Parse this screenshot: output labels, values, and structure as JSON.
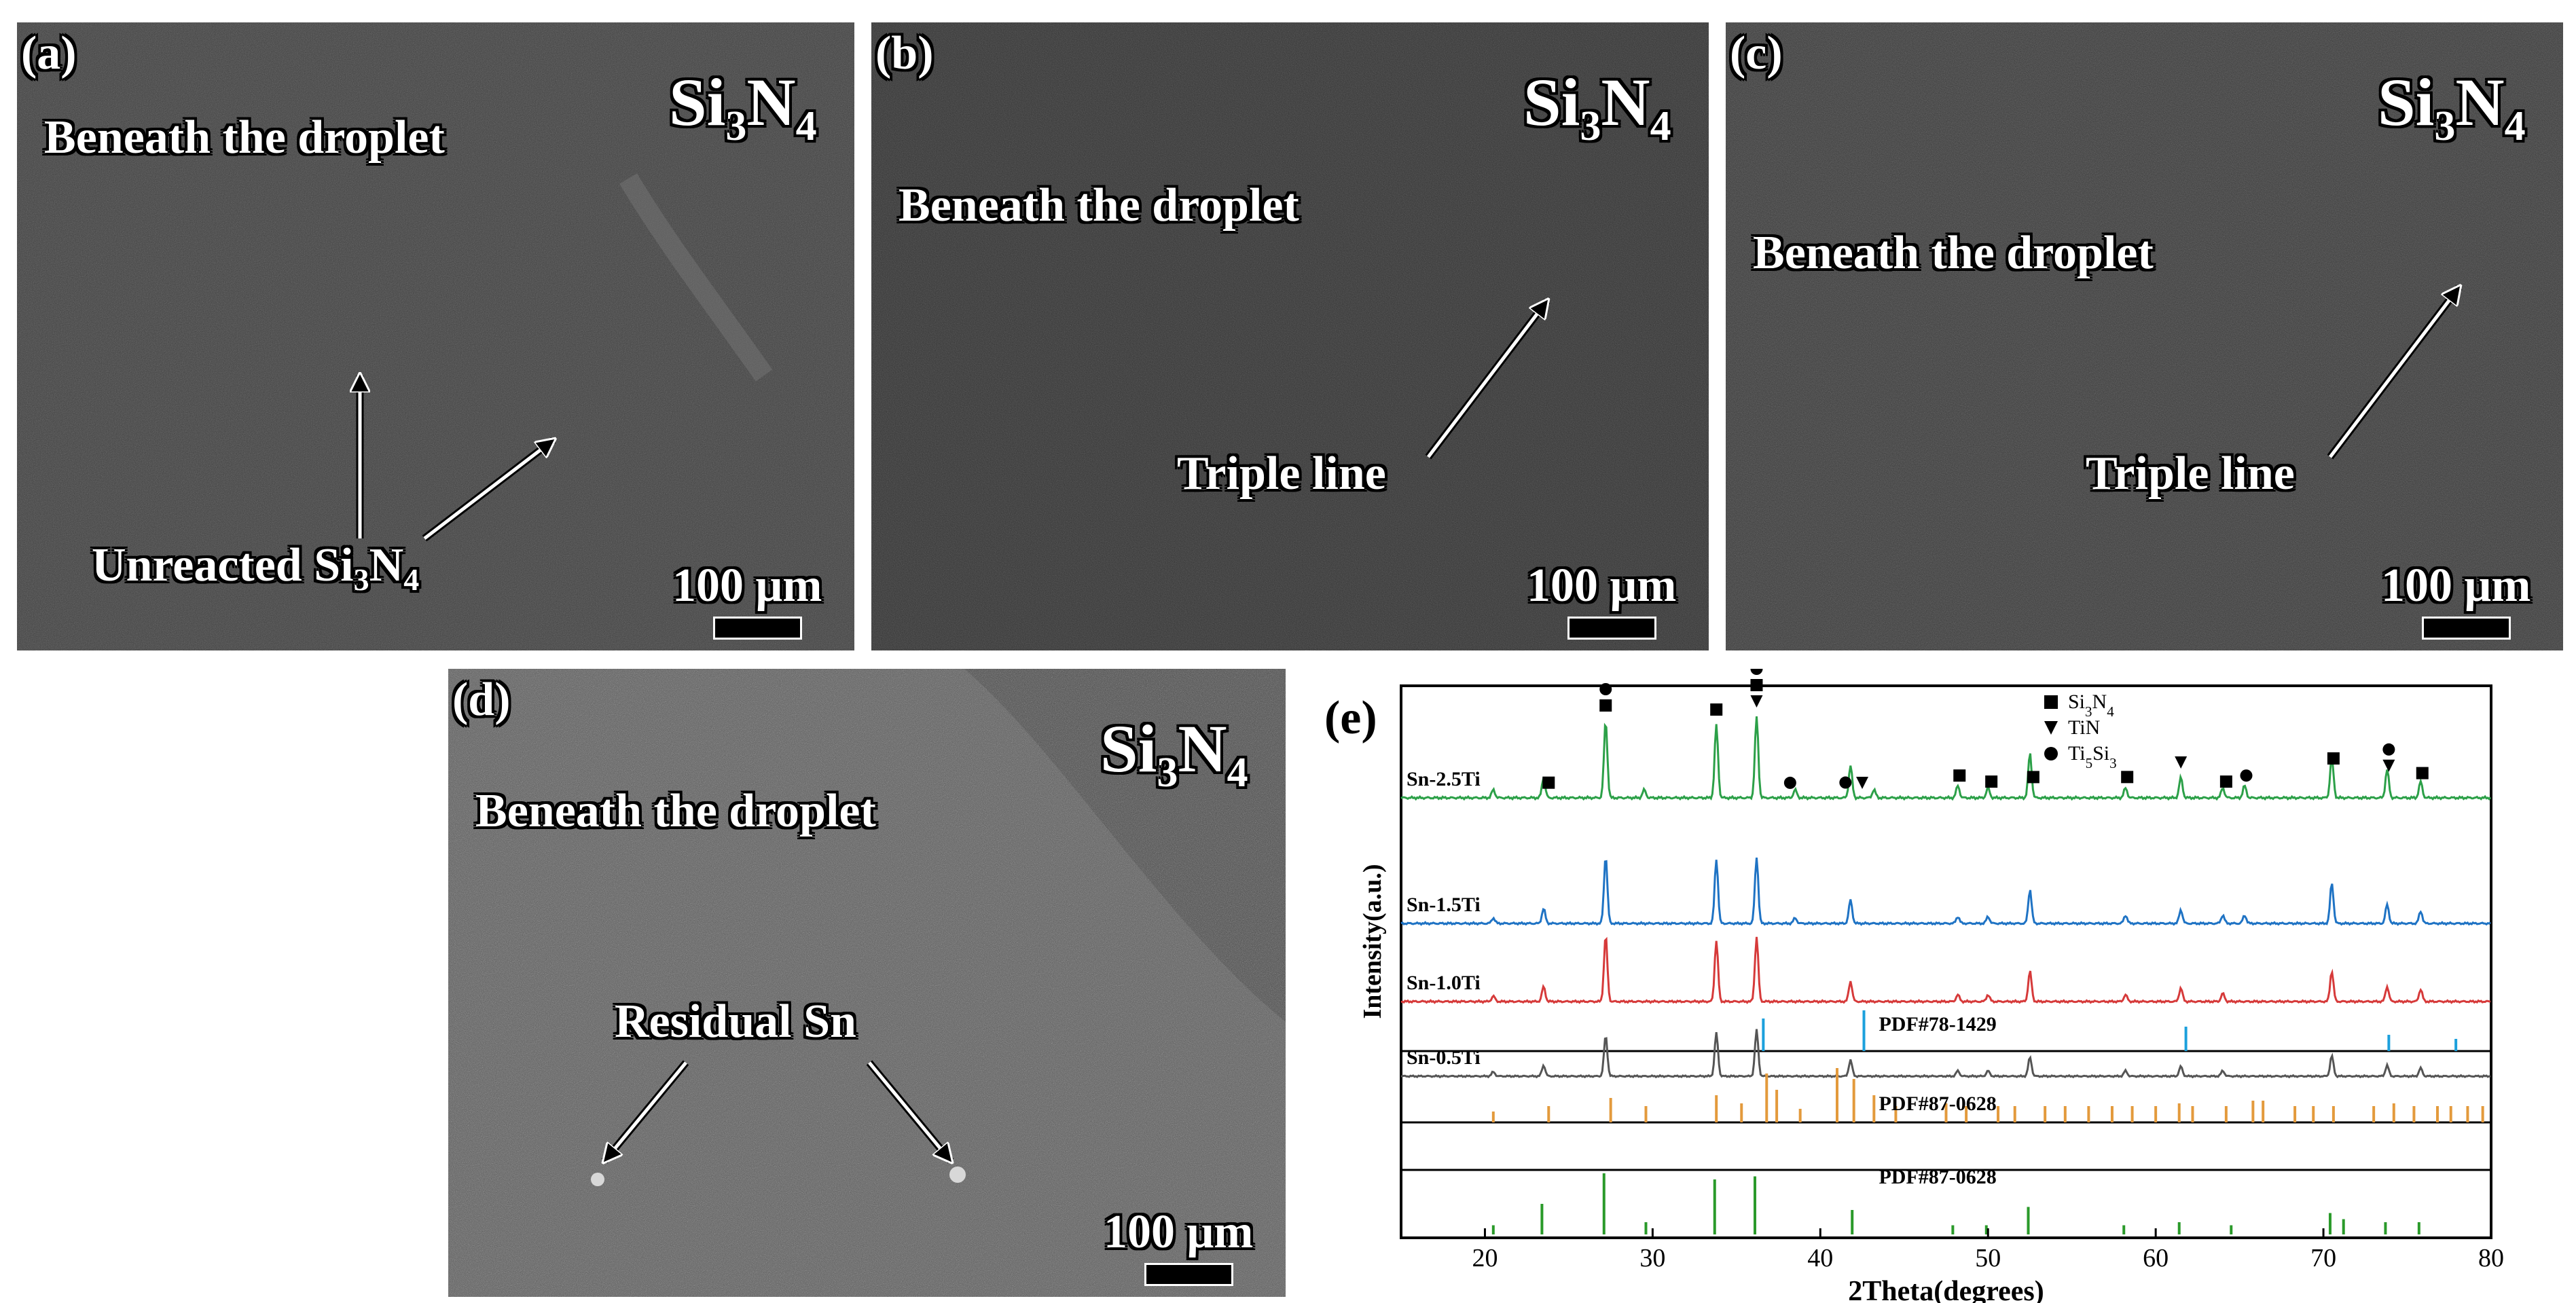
{
  "panels": {
    "a": {
      "label": "(a)",
      "material_main": "Si",
      "material_sub1": "3",
      "material_n": "N",
      "material_sub2": "4",
      "region": "Beneath the droplet",
      "annotation_main": "Unreacted Si",
      "annotation_sub1": "3",
      "annotation_n": "N",
      "annotation_sub2": "4",
      "scale": "100 μm"
    },
    "b": {
      "label": "(b)",
      "material_main": "Si",
      "material_sub1": "3",
      "material_n": "N",
      "material_sub2": "4",
      "region": "Beneath the droplet",
      "annotation": "Triple line",
      "scale": "100 μm"
    },
    "c": {
      "label": "(c)",
      "material_main": "Si",
      "material_sub1": "3",
      "material_n": "N",
      "material_sub2": "4",
      "region": "Beneath the droplet",
      "annotation": "Triple line",
      "scale": "100 μm"
    },
    "d": {
      "label": "(d)",
      "material_main": "Si",
      "material_sub1": "3",
      "material_n": "N",
      "material_sub2": "4",
      "region": "Beneath the droplet",
      "annotation": "Residual Sn",
      "scale": "100 μm"
    }
  },
  "colors": {
    "green": "#2ca048",
    "blue": "#1f73c4",
    "red": "#d63a3a",
    "gray": "#555555",
    "cyan": "#1ca0dc",
    "orange": "#e39a3c",
    "darkgreen": "#2a9a2a"
  },
  "chart_data": {
    "type": "line",
    "label": "(e)",
    "xlabel": "2Theta(degrees)",
    "ylabel": "Intensity(a.u.)",
    "xlim": [
      15,
      80
    ],
    "xticks": [
      20,
      30,
      40,
      50,
      60,
      70,
      80
    ],
    "legend": [
      {
        "marker": "square",
        "main": "Si",
        "sub1": "3",
        "mid": "N",
        "sub2": "4"
      },
      {
        "marker": "triangle-down",
        "main": "TiN",
        "sub1": "",
        "mid": "",
        "sub2": ""
      },
      {
        "marker": "circle",
        "main": "Ti",
        "sub1": "5",
        "mid": "Si",
        "sub2": "3"
      }
    ],
    "series": [
      {
        "name": "Sn-2.5Ti",
        "color": "green",
        "peaks": [
          [
            20.5,
            0.1
          ],
          [
            23.5,
            0.25
          ],
          [
            27.2,
            0.95
          ],
          [
            29.5,
            0.1
          ],
          [
            33.8,
            0.9
          ],
          [
            36.2,
            1.0
          ],
          [
            38.5,
            0.1
          ],
          [
            41.8,
            0.4
          ],
          [
            43.2,
            0.1
          ],
          [
            48.2,
            0.15
          ],
          [
            50.0,
            0.12
          ],
          [
            52.5,
            0.55
          ],
          [
            58.2,
            0.12
          ],
          [
            61.5,
            0.25
          ],
          [
            64.0,
            0.12
          ],
          [
            65.3,
            0.15
          ],
          [
            70.5,
            0.5
          ],
          [
            73.8,
            0.35
          ],
          [
            75.8,
            0.2
          ]
        ]
      },
      {
        "name": "Sn-1.5Ti",
        "color": "blue",
        "peaks": [
          [
            20.5,
            0.08
          ],
          [
            23.5,
            0.22
          ],
          [
            27.2,
            1.0
          ],
          [
            33.8,
            0.95
          ],
          [
            36.2,
            0.98
          ],
          [
            38.5,
            0.08
          ],
          [
            41.8,
            0.35
          ],
          [
            48.2,
            0.1
          ],
          [
            50.0,
            0.1
          ],
          [
            52.5,
            0.5
          ],
          [
            58.2,
            0.12
          ],
          [
            61.5,
            0.2
          ],
          [
            64.0,
            0.12
          ],
          [
            65.3,
            0.12
          ],
          [
            70.5,
            0.6
          ],
          [
            73.8,
            0.28
          ],
          [
            75.8,
            0.18
          ]
        ]
      },
      {
        "name": "Sn-1.0Ti",
        "color": "red",
        "peaks": [
          [
            20.5,
            0.08
          ],
          [
            23.5,
            0.22
          ],
          [
            27.2,
            0.98
          ],
          [
            33.8,
            0.9
          ],
          [
            36.2,
            0.95
          ],
          [
            41.8,
            0.3
          ],
          [
            48.2,
            0.1
          ],
          [
            50.0,
            0.1
          ],
          [
            52.5,
            0.45
          ],
          [
            58.2,
            0.1
          ],
          [
            61.5,
            0.2
          ],
          [
            64.0,
            0.12
          ],
          [
            70.5,
            0.45
          ],
          [
            73.8,
            0.22
          ],
          [
            75.8,
            0.18
          ]
        ]
      },
      {
        "name": "Sn-0.5Ti",
        "color": "gray",
        "peaks": [
          [
            20.5,
            0.08
          ],
          [
            23.5,
            0.2
          ],
          [
            27.2,
            0.75
          ],
          [
            33.8,
            0.8
          ],
          [
            36.2,
            0.85
          ],
          [
            41.8,
            0.3
          ],
          [
            48.2,
            0.1
          ],
          [
            50.0,
            0.1
          ],
          [
            52.5,
            0.35
          ],
          [
            58.2,
            0.1
          ],
          [
            61.5,
            0.18
          ],
          [
            64.0,
            0.1
          ],
          [
            70.5,
            0.38
          ],
          [
            73.8,
            0.2
          ],
          [
            75.8,
            0.15
          ]
        ]
      }
    ],
    "markers_on_top": [
      {
        "x": 27.2,
        "symbols": [
          "circle",
          "square"
        ]
      },
      {
        "x": 33.8,
        "symbols": [
          "square"
        ]
      },
      {
        "x": 36.2,
        "symbols": [
          "circle",
          "square",
          "triangle-down"
        ]
      },
      {
        "x": 23.8,
        "symbols": [
          "square"
        ]
      },
      {
        "x": 38.2,
        "symbols": [
          "circle"
        ]
      },
      {
        "x": 41.5,
        "symbols": [
          "circle"
        ]
      },
      {
        "x": 42.5,
        "symbols": [
          "triangle-down"
        ]
      },
      {
        "x": 48.3,
        "symbols": [
          "square"
        ]
      },
      {
        "x": 50.2,
        "symbols": [
          "square"
        ]
      },
      {
        "x": 52.7,
        "symbols": [
          "square"
        ]
      },
      {
        "x": 58.3,
        "symbols": [
          "square"
        ]
      },
      {
        "x": 61.5,
        "symbols": [
          "triangle-down"
        ]
      },
      {
        "x": 64.2,
        "symbols": [
          "square"
        ]
      },
      {
        "x": 65.4,
        "symbols": [
          "circle"
        ]
      },
      {
        "x": 70.6,
        "symbols": [
          "square"
        ]
      },
      {
        "x": 73.9,
        "symbols": [
          "circle",
          "triangle-down"
        ]
      },
      {
        "x": 75.9,
        "symbols": [
          "square"
        ]
      }
    ],
    "references": [
      {
        "name": "PDF#78-1429",
        "color": "cyan",
        "lines": [
          [
            36.6,
            0.8
          ],
          [
            42.6,
            1.0
          ],
          [
            61.8,
            0.6
          ],
          [
            73.9,
            0.4
          ],
          [
            77.9,
            0.3
          ]
        ]
      },
      {
        "name": "PDF#87-0628",
        "color": "orange",
        "lines": [
          [
            20.5,
            0.2
          ],
          [
            23.8,
            0.3
          ],
          [
            27.5,
            0.45
          ],
          [
            29.6,
            0.3
          ],
          [
            33.8,
            0.5
          ],
          [
            35.3,
            0.35
          ],
          [
            36.8,
            0.9
          ],
          [
            37.4,
            0.6
          ],
          [
            38.8,
            0.25
          ],
          [
            41.0,
            1.0
          ],
          [
            42.0,
            0.8
          ],
          [
            43.2,
            0.5
          ],
          [
            44.5,
            0.3
          ],
          [
            47.5,
            0.35
          ],
          [
            48.7,
            0.3
          ],
          [
            50.6,
            0.3
          ],
          [
            51.6,
            0.3
          ],
          [
            53.4,
            0.3
          ],
          [
            54.6,
            0.3
          ],
          [
            56.0,
            0.3
          ],
          [
            57.4,
            0.3
          ],
          [
            58.6,
            0.3
          ],
          [
            60.0,
            0.3
          ],
          [
            61.4,
            0.35
          ],
          [
            62.2,
            0.3
          ],
          [
            64.2,
            0.3
          ],
          [
            65.8,
            0.4
          ],
          [
            66.4,
            0.4
          ],
          [
            68.3,
            0.3
          ],
          [
            69.4,
            0.3
          ],
          [
            70.6,
            0.3
          ],
          [
            73.0,
            0.3
          ],
          [
            74.2,
            0.35
          ],
          [
            75.4,
            0.3
          ],
          [
            76.8,
            0.3
          ],
          [
            77.6,
            0.3
          ],
          [
            78.6,
            0.3
          ],
          [
            79.5,
            0.3
          ]
        ]
      },
      {
        "name": "PDF#87-0628",
        "color": "darkgreen",
        "lines": [
          [
            20.5,
            0.15
          ],
          [
            23.4,
            0.5
          ],
          [
            27.1,
            1.0
          ],
          [
            29.6,
            0.2
          ],
          [
            33.7,
            0.9
          ],
          [
            36.1,
            0.95
          ],
          [
            41.9,
            0.4
          ],
          [
            47.9,
            0.15
          ],
          [
            49.9,
            0.15
          ],
          [
            52.4,
            0.45
          ],
          [
            58.1,
            0.15
          ],
          [
            61.4,
            0.2
          ],
          [
            64.5,
            0.15
          ],
          [
            70.4,
            0.35
          ],
          [
            71.2,
            0.25
          ],
          [
            73.7,
            0.2
          ],
          [
            75.7,
            0.2
          ]
        ]
      }
    ]
  }
}
